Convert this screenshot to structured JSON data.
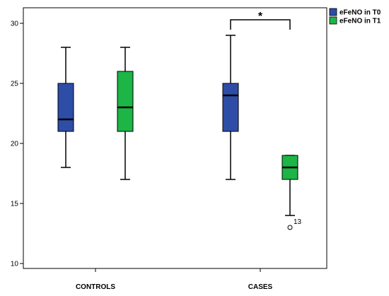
{
  "chart_data": {
    "type": "boxplot",
    "title": "",
    "xlabel": "",
    "ylabel": "",
    "ylim": [
      10,
      30
    ],
    "yticks": [
      10,
      15,
      20,
      25,
      30
    ],
    "grid": false,
    "legend_position": "top-right",
    "categories": [
      "CONTROLS",
      "CASES"
    ],
    "series": [
      {
        "name": "eFeNO in T0",
        "color": "#2E4DA7",
        "boxes": [
          {
            "category": "CONTROLS",
            "min": 18,
            "q1": 21,
            "median": 22,
            "q3": 25,
            "max": 28,
            "outliers": []
          },
          {
            "category": "CASES",
            "min": 17,
            "q1": 21,
            "median": 24,
            "q3": 25,
            "max": 29,
            "outliers": []
          }
        ]
      },
      {
        "name": "eFeNO in T1",
        "color": "#1DB546",
        "boxes": [
          {
            "category": "CONTROLS",
            "min": 17,
            "q1": 21,
            "median": 23,
            "q3": 26,
            "max": 28,
            "outliers": []
          },
          {
            "category": "CASES",
            "min": 14,
            "q1": 17,
            "median": 18,
            "q3": 19,
            "max": 19,
            "outliers": [
              {
                "value": 13,
                "label": "13"
              }
            ]
          }
        ]
      }
    ],
    "annotations": [
      {
        "type": "significance",
        "category": "CASES",
        "text": "*"
      }
    ]
  }
}
